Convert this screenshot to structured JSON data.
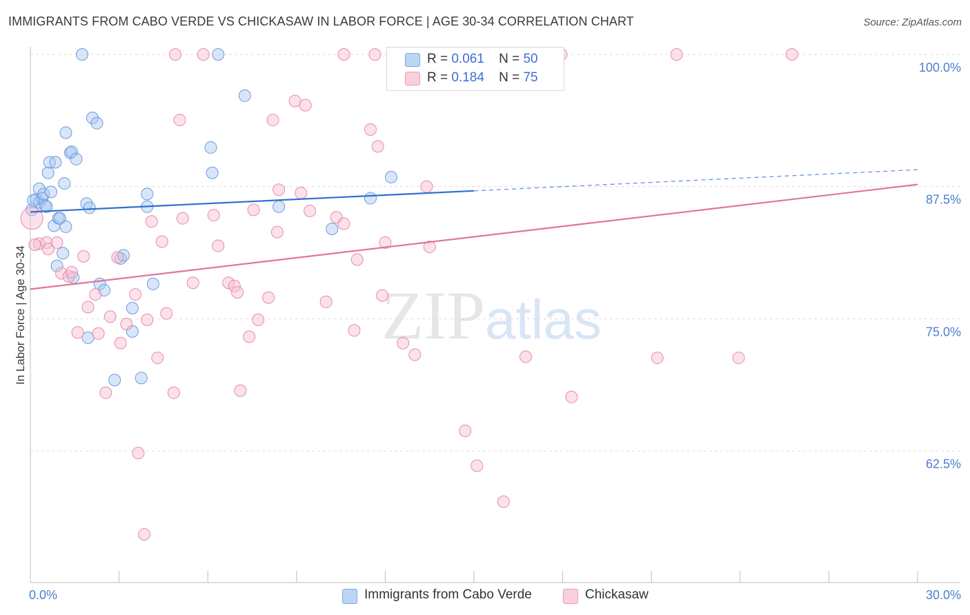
{
  "title": "IMMIGRANTS FROM CABO VERDE VS CHICKASAW IN LABOR FORCE | AGE 30-34 CORRELATION CHART",
  "source": "Source: ZipAtlas.com",
  "watermark": {
    "zip": "ZIP",
    "atlas": "atlas"
  },
  "legend": {
    "rows": [
      {
        "r_label": "R =",
        "r_value": "0.061",
        "n_label": "N =",
        "n_value": "50",
        "color": "#a9c8f0"
      },
      {
        "r_label": "R =",
        "r_value": "0.184",
        "n_label": "N =",
        "n_value": "75",
        "color": "#f6bcd0"
      }
    ]
  },
  "chart_data": {
    "type": "scatter",
    "title": "IMMIGRANTS FROM CABO VERDE VS CHICKASAW IN LABOR FORCE | AGE 30-34 CORRELATION CHART",
    "xlabel": "",
    "ylabel": "In Labor Force | Age 30-34",
    "xlim": [
      0,
      30
    ],
    "ylim": [
      50,
      102
    ],
    "x_tick_labels": [
      {
        "value": 0,
        "label": "0.0%"
      },
      {
        "value": 30,
        "label": "30.0%"
      }
    ],
    "y_tick_labels": [
      {
        "value": 100,
        "label": "100.0%"
      },
      {
        "value": 87.5,
        "label": "87.5%"
      },
      {
        "value": 75,
        "label": "75.0%"
      },
      {
        "value": 62.5,
        "label": "62.5%"
      }
    ],
    "grid": true,
    "legend_position": "top-center",
    "series": [
      {
        "name": "Immigrants from Cabo Verde",
        "color": "#a9c8f0",
        "stroke": "#6a9ae0",
        "trend": {
          "x": [
            0,
            15
          ],
          "y": [
            85.1,
            87.1
          ],
          "dashed_to": [
            30,
            89.1
          ],
          "color": "#2f6fd0"
        },
        "points": [
          [
            0.05,
            85.3
          ],
          [
            0.2,
            86.3
          ],
          [
            0.3,
            86.0
          ],
          [
            0.3,
            87.3
          ],
          [
            0.4,
            86.4
          ],
          [
            0.45,
            86.8
          ],
          [
            0.5,
            85.7
          ],
          [
            0.55,
            85.6
          ],
          [
            0.6,
            88.8
          ],
          [
            0.65,
            89.8
          ],
          [
            0.7,
            87.0
          ],
          [
            0.8,
            83.8
          ],
          [
            0.85,
            89.8
          ],
          [
            0.9,
            80.0
          ],
          [
            0.95,
            84.5
          ],
          [
            1.0,
            84.5
          ],
          [
            1.1,
            81.2
          ],
          [
            1.15,
            87.8
          ],
          [
            1.2,
            83.7
          ],
          [
            1.2,
            92.6
          ],
          [
            1.35,
            90.7
          ],
          [
            1.4,
            90.8
          ],
          [
            1.45,
            78.9
          ],
          [
            1.55,
            90.1
          ],
          [
            1.75,
            100.0
          ],
          [
            1.9,
            85.9
          ],
          [
            1.95,
            73.2
          ],
          [
            2.0,
            85.5
          ],
          [
            2.1,
            94.0
          ],
          [
            2.25,
            93.5
          ],
          [
            2.35,
            78.3
          ],
          [
            2.5,
            77.7
          ],
          [
            2.85,
            69.2
          ],
          [
            3.05,
            80.7
          ],
          [
            3.15,
            81.0
          ],
          [
            3.45,
            73.8
          ],
          [
            3.45,
            76.0
          ],
          [
            3.75,
            69.4
          ],
          [
            3.95,
            85.6
          ],
          [
            3.95,
            86.8
          ],
          [
            4.15,
            78.3
          ],
          [
            6.1,
            91.2
          ],
          [
            6.15,
            88.8
          ],
          [
            6.35,
            100.0
          ],
          [
            7.25,
            96.1
          ],
          [
            8.4,
            85.6
          ],
          [
            10.2,
            83.5
          ],
          [
            11.5,
            86.4
          ],
          [
            12.2,
            88.4
          ],
          [
            0.1,
            86.2
          ]
        ]
      },
      {
        "name": "Chickasaw",
        "color": "#f6bcd0",
        "stroke": "#e98aa8",
        "trend": {
          "x": [
            0,
            30
          ],
          "y": [
            77.8,
            87.7
          ],
          "color": "#e3739a"
        },
        "points": [
          [
            0.05,
            84.5
          ],
          [
            0.3,
            82.1
          ],
          [
            0.55,
            82.2
          ],
          [
            0.6,
            81.6
          ],
          [
            0.9,
            82.2
          ],
          [
            1.05,
            79.3
          ],
          [
            1.3,
            79.0
          ],
          [
            1.4,
            79.4
          ],
          [
            1.6,
            73.7
          ],
          [
            1.8,
            80.9
          ],
          [
            1.95,
            76.1
          ],
          [
            2.2,
            77.3
          ],
          [
            2.3,
            73.6
          ],
          [
            2.55,
            68.0
          ],
          [
            2.7,
            75.2
          ],
          [
            2.95,
            80.8
          ],
          [
            3.05,
            72.7
          ],
          [
            3.25,
            74.5
          ],
          [
            3.55,
            77.3
          ],
          [
            3.65,
            62.3
          ],
          [
            3.85,
            54.6
          ],
          [
            3.95,
            74.9
          ],
          [
            4.1,
            84.2
          ],
          [
            4.3,
            71.3
          ],
          [
            4.45,
            82.3
          ],
          [
            4.6,
            75.5
          ],
          [
            4.85,
            68.0
          ],
          [
            5.05,
            93.8
          ],
          [
            5.15,
            84.5
          ],
          [
            5.5,
            78.4
          ],
          [
            5.85,
            100.0
          ],
          [
            6.2,
            84.8
          ],
          [
            6.35,
            81.9
          ],
          [
            6.7,
            78.4
          ],
          [
            6.9,
            78.1
          ],
          [
            7.0,
            77.5
          ],
          [
            7.1,
            68.2
          ],
          [
            7.4,
            73.3
          ],
          [
            7.55,
            85.3
          ],
          [
            7.7,
            74.9
          ],
          [
            8.05,
            77.0
          ],
          [
            8.2,
            93.8
          ],
          [
            8.35,
            83.2
          ],
          [
            8.4,
            87.2
          ],
          [
            8.95,
            95.6
          ],
          [
            9.15,
            86.9
          ],
          [
            9.3,
            95.2
          ],
          [
            9.45,
            85.2
          ],
          [
            10.0,
            76.6
          ],
          [
            10.35,
            84.6
          ],
          [
            10.6,
            84.0
          ],
          [
            10.6,
            100.0
          ],
          [
            10.95,
            73.9
          ],
          [
            11.05,
            80.6
          ],
          [
            11.5,
            92.9
          ],
          [
            11.65,
            100.0
          ],
          [
            11.75,
            91.3
          ],
          [
            11.9,
            77.2
          ],
          [
            12.0,
            82.2
          ],
          [
            12.6,
            72.7
          ],
          [
            13.0,
            71.6
          ],
          [
            13.4,
            87.5
          ],
          [
            13.5,
            81.8
          ],
          [
            14.7,
            64.4
          ],
          [
            15.1,
            61.1
          ],
          [
            16.0,
            57.7
          ],
          [
            16.75,
            71.4
          ],
          [
            17.95,
            100.0
          ],
          [
            18.3,
            67.6
          ],
          [
            21.2,
            71.3
          ],
          [
            21.85,
            100.0
          ],
          [
            23.95,
            71.3
          ],
          [
            25.75,
            100.0
          ],
          [
            0.15,
            82.0
          ],
          [
            4.9,
            100.0
          ]
        ]
      }
    ]
  },
  "bottom_legend": [
    {
      "label": "Immigrants from Cabo Verde",
      "color": "#a9c8f0"
    },
    {
      "label": "Chickasaw",
      "color": "#f6bcd0"
    }
  ]
}
